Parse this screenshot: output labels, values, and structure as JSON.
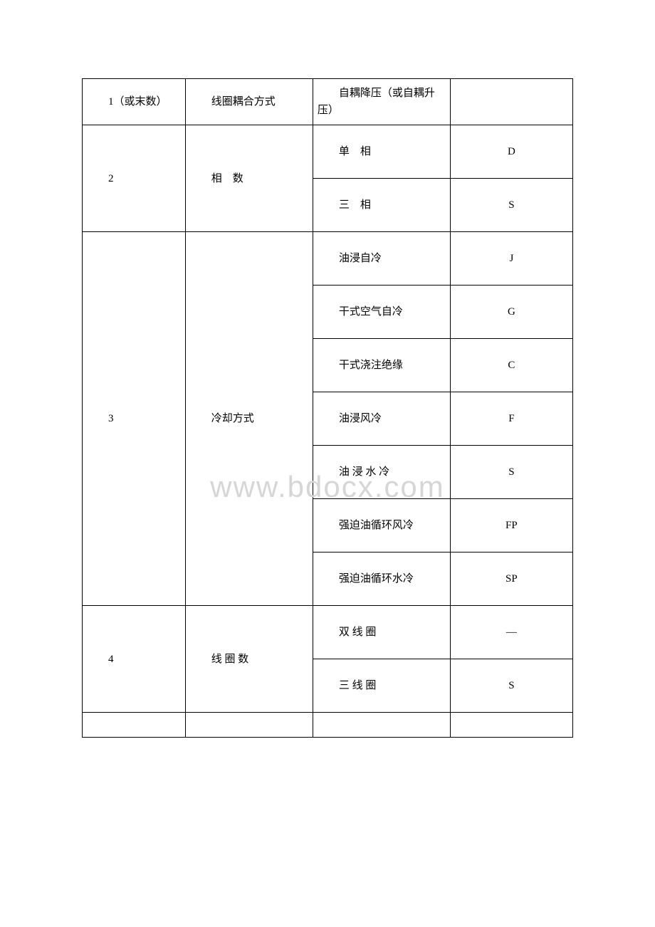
{
  "watermark": "www.bdocx.com",
  "table": {
    "row1": {
      "c1": "1（或末数）",
      "c2": "线圈耦合方式",
      "c3": "自耦降压（或自耦升压）",
      "c4": ""
    },
    "row2": {
      "c1": "2",
      "c2": "相　数",
      "c3a": "单　相",
      "c4a": "D",
      "c3b": "三　相",
      "c4b": "S"
    },
    "row3": {
      "c1": "3",
      "c2": "冷却方式",
      "c3a": "油浸自冷",
      "c4a": "J",
      "c3b": "干式空气自冷",
      "c4b": "G",
      "c3c": "干式浇注绝缘",
      "c4c": "C",
      "c3d": "油浸风冷",
      "c4d": "F",
      "c3e": "油 浸 水 冷",
      "c4e": "S",
      "c3f": "强迫油循环风冷",
      "c4f": "FP",
      "c3g": "强迫油循环水冷",
      "c4g": "SP"
    },
    "row4": {
      "c1": "4",
      "c2": "线 圈 数",
      "c3a": "双 线 圈",
      "c4a": "—",
      "c3b": "三 线 圈",
      "c4b": "S"
    }
  }
}
